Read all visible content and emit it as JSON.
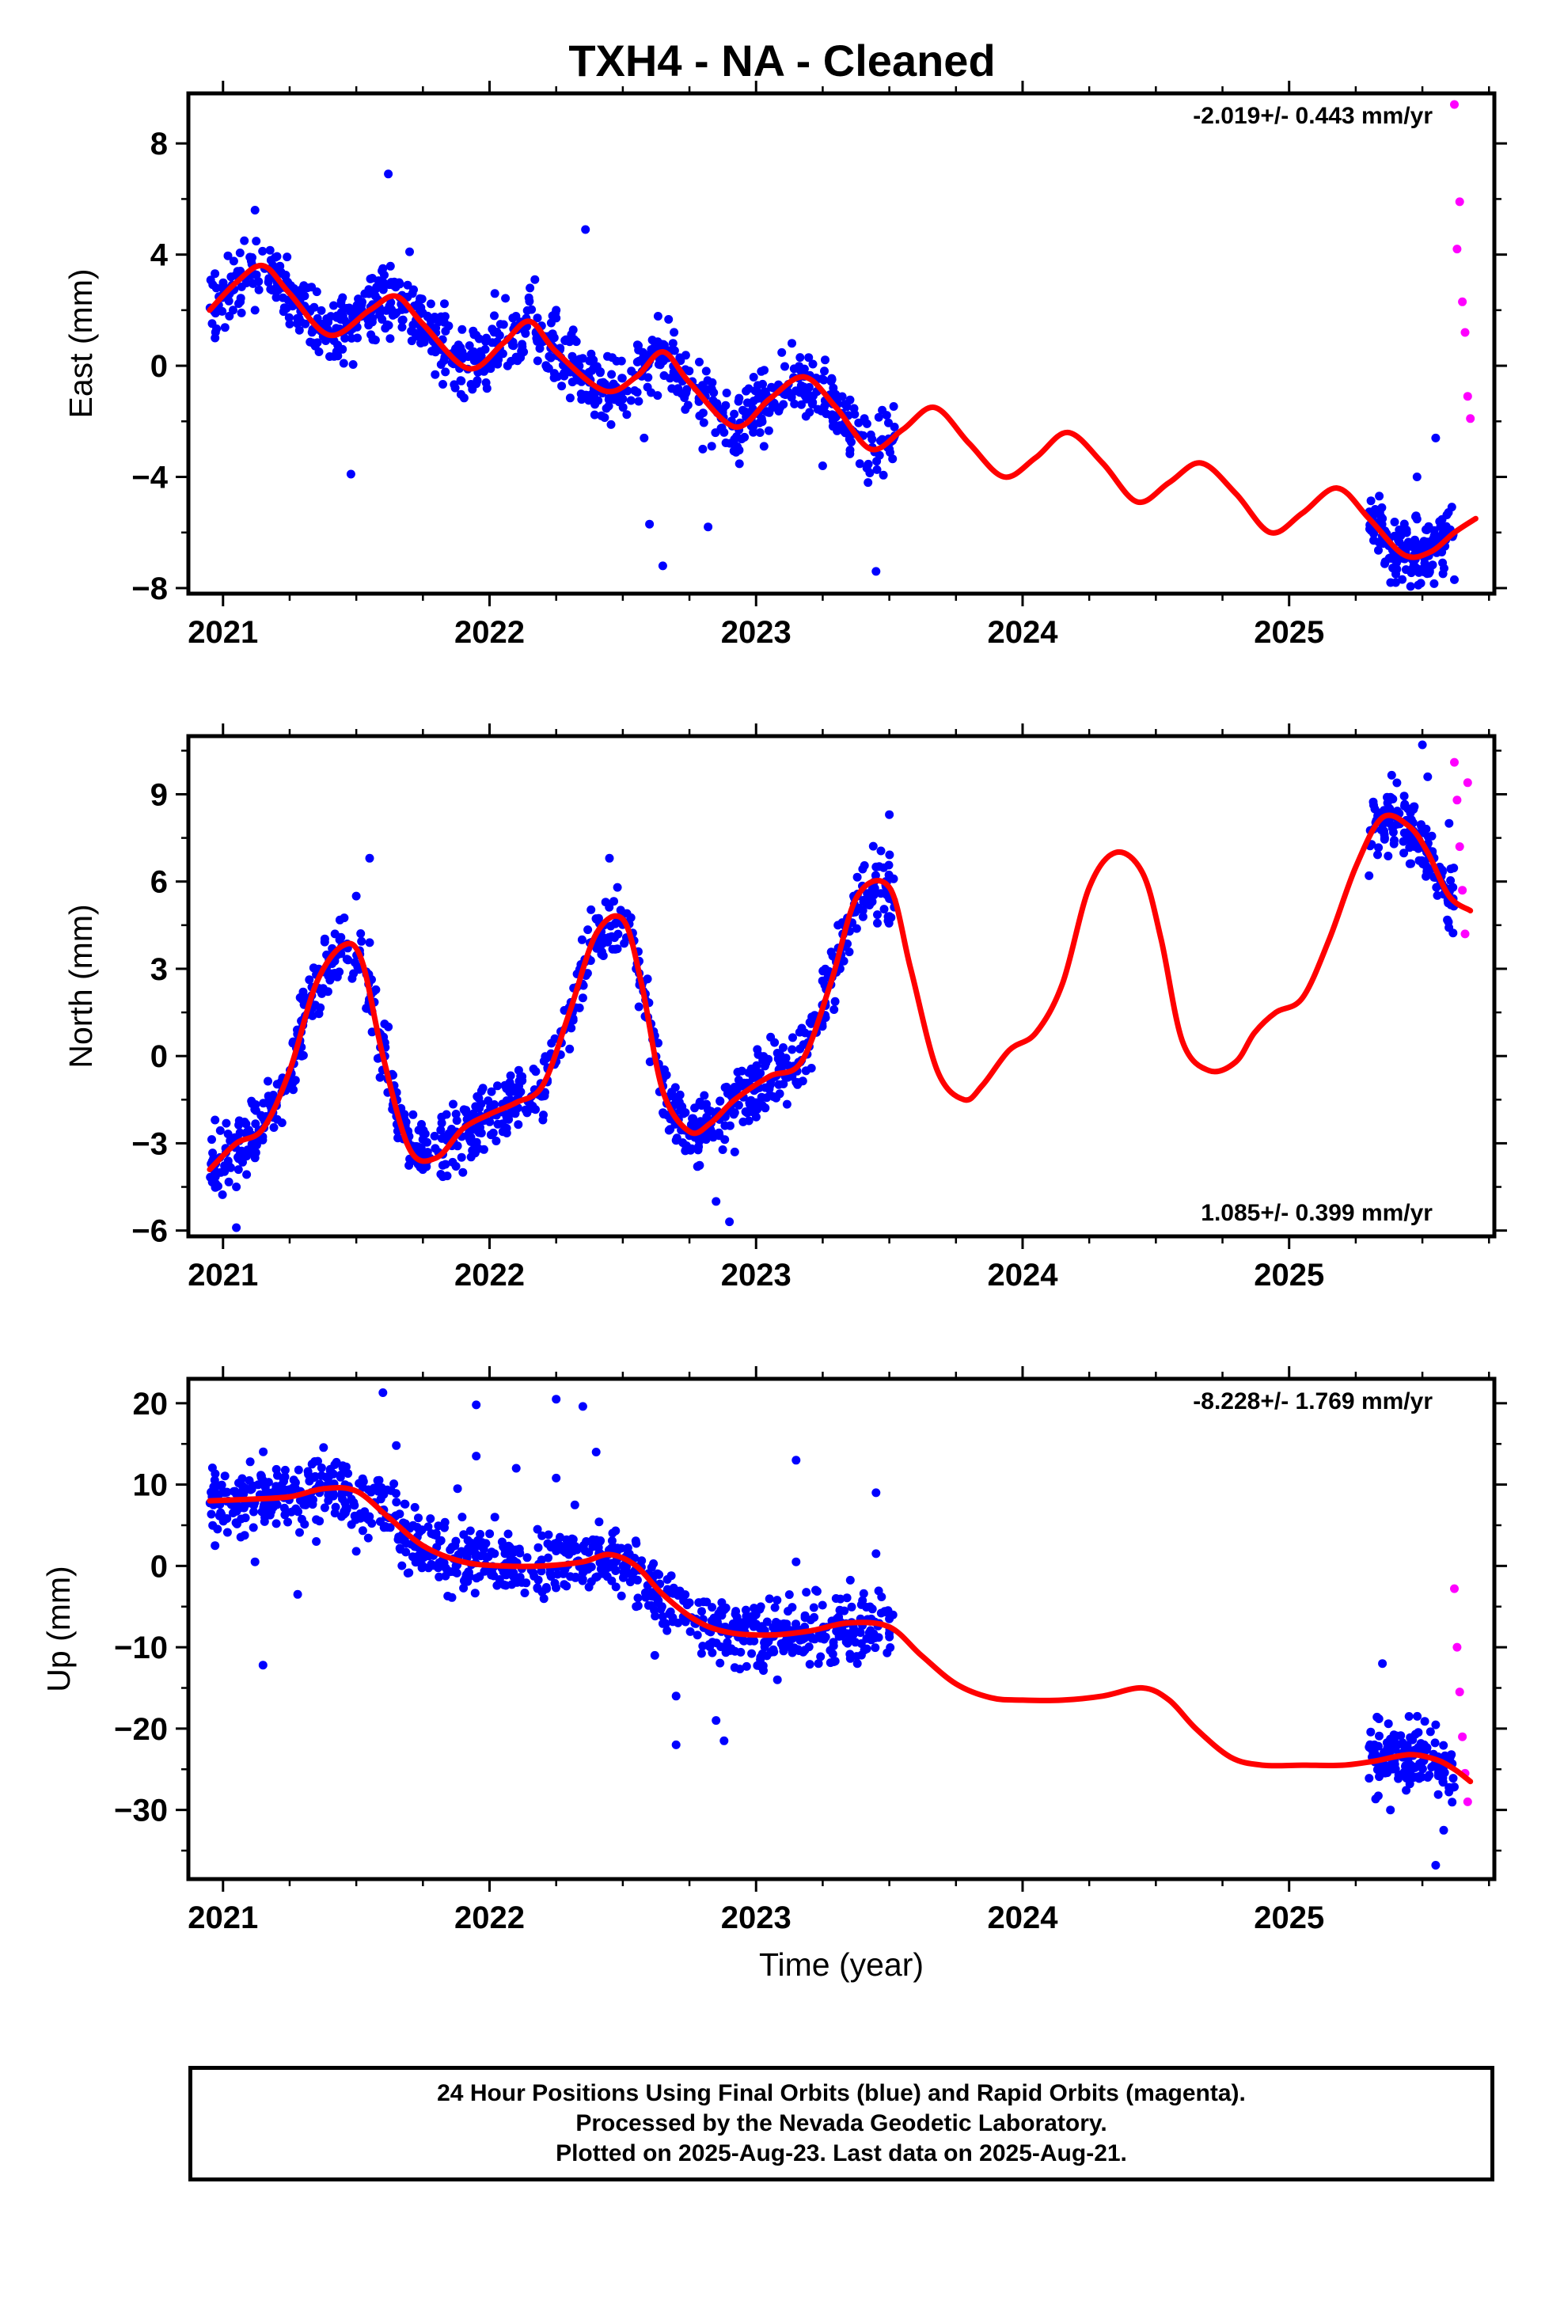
{
  "title": "TXH4  - NA - Cleaned",
  "xlabel": "Time (year)",
  "caption": [
    "24 Hour Positions Using Final Orbits (blue) and Rapid Orbits (magenta).",
    "Processed by the Nevada Geodetic Laboratory.",
    "Plotted on 2025-Aug-23. Last data on 2025-Aug-21."
  ],
  "colors": {
    "final": "#0000ff",
    "rapid": "#ff00ff",
    "model": "#ff0000",
    "axes": "#000000"
  },
  "chart_data": [
    {
      "type": "scatter",
      "ylabel": "East (mm)",
      "rate": "-2.019+/- 0.443 mm/yr",
      "xlim": [
        2020.87,
        2025.77
      ],
      "ylim": [
        -8.2,
        9.8
      ],
      "xticks": [
        2021,
        2022,
        2023,
        2024,
        2025
      ],
      "yticks": [
        -8,
        -4,
        0,
        4,
        8
      ],
      "ytick_labels": [
        "−8",
        "−4",
        "0",
        "4",
        "8"
      ],
      "model": {
        "x": [
          2020.95,
          2021.05,
          2021.15,
          2021.25,
          2021.4,
          2021.55,
          2021.65,
          2021.75,
          2021.92,
          2022.05,
          2022.15,
          2022.25,
          2022.43,
          2022.55,
          2022.65,
          2022.75,
          2022.92,
          2023.05,
          2023.18,
          2023.3,
          2023.43,
          2023.55,
          2023.67,
          2023.8,
          2023.93,
          2024.05,
          2024.17,
          2024.3,
          2024.43,
          2024.55,
          2024.67,
          2024.8,
          2024.93,
          2025.05,
          2025.18,
          2025.3,
          2025.43,
          2025.53,
          2025.62,
          2025.7
        ],
        "y": [
          2.0,
          3.0,
          3.6,
          2.6,
          1.1,
          2.0,
          2.5,
          1.5,
          -0.1,
          0.8,
          1.6,
          0.5,
          -0.9,
          -0.4,
          0.5,
          -0.6,
          -2.2,
          -1.2,
          -0.4,
          -1.5,
          -3.0,
          -2.3,
          -1.5,
          -2.8,
          -4.0,
          -3.3,
          -2.4,
          -3.5,
          -4.9,
          -4.2,
          -3.5,
          -4.6,
          -6.0,
          -5.3,
          -4.4,
          -5.5,
          -6.8,
          -6.7,
          -6.0,
          -5.5
        ]
      },
      "points": [
        {
          "x": [
            2020.97,
            2021.03,
            2021.08,
            2021.12,
            2021.18,
            2021.25,
            2021.3,
            2021.36,
            2021.45,
            2021.52,
            2021.6,
            2021.65,
            2021.7,
            2021.78,
            2021.86,
            2021.95,
            2022.02,
            2022.1,
            2022.17,
            2022.25,
            2022.33,
            2022.42,
            2022.5,
            2022.58,
            2022.65,
            2022.72,
            2022.8,
            2022.88,
            2022.95,
            2023.03,
            2023.1,
            2023.17,
            2023.25,
            2023.33,
            2023.42,
            2023.5,
            2025.35,
            2025.42,
            2025.48,
            2025.55
          ],
          "y": [
            1.0,
            3.2,
            4.5,
            2.0,
            3.8,
            1.5,
            2.8,
            0.5,
            1.8,
            2.2,
            3.5,
            1.9,
            4.1,
            1.2,
            0.3,
            1.1,
            2.6,
            0.2,
            3.1,
            2.0,
            -0.4,
            -1.8,
            -1.2,
            -2.6,
            0.2,
            -1.0,
            -3.0,
            -2.4,
            -1.6,
            -2.9,
            -0.8,
            -1.4,
            -3.6,
            -2.1,
            -4.2,
            -3.0,
            -5.5,
            -6.1,
            -4.0,
            -2.6
          ]
        },
        {
          "x": [
            2021.12,
            2021.48,
            2021.62,
            2022.36,
            2022.6,
            2022.65,
            2022.82,
            2023.45,
            2025.4,
            2025.62
          ],
          "y": [
            5.6,
            -3.9,
            6.9,
            4.9,
            -5.7,
            -7.2,
            -5.8,
            -7.4,
            -7.8,
            -7.7
          ]
        },
        {
          "x": [
            2025.62,
            2025.63,
            2025.64,
            2025.65,
            2025.66,
            2025.67,
            2025.68
          ],
          "y": [
            9.4,
            4.2,
            5.9,
            2.3,
            1.2,
            -1.1,
            -1.9
          ],
          "rapid": true
        }
      ]
    },
    {
      "type": "scatter",
      "ylabel": "North (mm)",
      "rate": "1.085+/- 0.399 mm/yr",
      "xlim": [
        2020.87,
        2025.77
      ],
      "ylim": [
        -6.2,
        11.0
      ],
      "xticks": [
        2021,
        2022,
        2023,
        2024,
        2025
      ],
      "yticks": [
        -6,
        -3,
        0,
        3,
        6,
        9
      ],
      "ytick_labels": [
        "−6",
        "−3",
        "0",
        "3",
        "6",
        "9"
      ],
      "model": {
        "x": [
          2020.95,
          2021.05,
          2021.15,
          2021.25,
          2021.35,
          2021.45,
          2021.52,
          2021.6,
          2021.7,
          2021.8,
          2021.9,
          2022.0,
          2022.1,
          2022.2,
          2022.3,
          2022.4,
          2022.5,
          2022.57,
          2022.65,
          2022.75,
          2022.83,
          2022.92,
          2023.05,
          2023.17,
          2023.28,
          2023.38,
          2023.5,
          2023.58,
          2023.68,
          2023.78,
          2023.85,
          2023.95,
          2024.05,
          2024.15,
          2024.25,
          2024.35,
          2024.45,
          2024.52,
          2024.6,
          2024.7,
          2024.8,
          2024.87,
          2024.95,
          2025.05,
          2025.15,
          2025.25,
          2025.35,
          2025.45,
          2025.52,
          2025.6,
          2025.68
        ],
        "y": [
          -3.9,
          -3.0,
          -2.5,
          -0.5,
          2.5,
          3.8,
          3.3,
          0.0,
          -3.2,
          -3.5,
          -2.5,
          -2.0,
          -1.6,
          -1.0,
          1.5,
          4.2,
          4.7,
          2.5,
          -1.2,
          -2.6,
          -2.3,
          -1.5,
          -0.7,
          -0.2,
          2.5,
          5.5,
          5.8,
          3.0,
          -0.5,
          -1.5,
          -1.0,
          0.2,
          0.8,
          2.5,
          5.8,
          7.0,
          6.3,
          4.0,
          0.5,
          -0.5,
          -0.2,
          0.8,
          1.5,
          2.0,
          4.0,
          6.5,
          8.2,
          7.9,
          7.0,
          5.5,
          5.0
        ]
      },
      "points": [
        {
          "x": [
            2020.97,
            2021.05,
            2021.12,
            2021.2,
            2021.28,
            2021.35,
            2021.42,
            2021.5,
            2021.55,
            2021.62,
            2021.68,
            2021.75,
            2021.82,
            2021.9,
            2021.97,
            2022.05,
            2022.12,
            2022.2,
            2022.28,
            2022.35,
            2022.42,
            2022.48,
            2022.55,
            2022.62,
            2022.7,
            2022.78,
            2022.85,
            2022.92,
            2023.0,
            2023.08,
            2023.15,
            2023.22,
            2023.3,
            2023.38,
            2023.45,
            2023.5,
            2025.3,
            2025.38,
            2025.45,
            2025.52,
            2025.6
          ],
          "y": [
            -2.2,
            -4.5,
            -3.5,
            -1.6,
            0.5,
            2.8,
            4.2,
            5.5,
            3.9,
            1.0,
            -2.0,
            -3.8,
            -2.1,
            -4.0,
            -1.2,
            -2.6,
            -0.8,
            -2.2,
            0.9,
            2.0,
            3.5,
            5.8,
            3.0,
            0.7,
            -2.9,
            -3.8,
            -5.0,
            -3.3,
            -1.6,
            0.1,
            -0.9,
            1.4,
            3.3,
            5.5,
            6.5,
            4.8,
            6.2,
            8.9,
            7.5,
            9.6,
            8.0
          ]
        },
        {
          "x": [
            2021.05,
            2021.55,
            2022.45,
            2022.9,
            2023.5,
            2025.5
          ],
          "y": [
            -5.9,
            6.8,
            6.8,
            -5.7,
            8.3,
            10.7
          ]
        },
        {
          "x": [
            2025.62,
            2025.63,
            2025.64,
            2025.65,
            2025.66,
            2025.67
          ],
          "y": [
            10.1,
            8.8,
            7.2,
            5.7,
            4.2,
            9.4
          ],
          "rapid": true
        }
      ]
    },
    {
      "type": "scatter",
      "ylabel": "Up (mm)",
      "rate": "-8.228+/- 1.769 mm/yr",
      "xlim": [
        2020.87,
        2025.77
      ],
      "ylim": [
        -38.5,
        23.0
      ],
      "xticks": [
        2021,
        2022,
        2023,
        2024,
        2025
      ],
      "yticks": [
        -30,
        -20,
        -10,
        0,
        10,
        20
      ],
      "ytick_labels": [
        "−30",
        "−20",
        "−10",
        "0",
        "10",
        "20"
      ],
      "model": {
        "x": [
          2020.95,
          2021.1,
          2021.25,
          2021.38,
          2021.5,
          2021.62,
          2021.75,
          2021.9,
          2022.05,
          2022.2,
          2022.35,
          2022.45,
          2022.55,
          2022.65,
          2022.78,
          2022.9,
          2023.05,
          2023.2,
          2023.35,
          2023.5,
          2023.62,
          2023.75,
          2023.88,
          2024.0,
          2024.15,
          2024.3,
          2024.45,
          2024.55,
          2024.65,
          2024.78,
          2024.9,
          2025.05,
          2025.2,
          2025.32,
          2025.45,
          2025.55,
          2025.62,
          2025.68
        ],
        "y": [
          8.0,
          8.2,
          8.5,
          9.5,
          9.2,
          6.0,
          2.5,
          0.5,
          0.0,
          0.0,
          0.5,
          1.4,
          0.0,
          -3.5,
          -6.8,
          -8.2,
          -8.5,
          -8.0,
          -7.0,
          -7.5,
          -11.0,
          -14.5,
          -16.2,
          -16.5,
          -16.5,
          -16.0,
          -15.0,
          -16.5,
          -20.0,
          -23.5,
          -24.5,
          -24.5,
          -24.5,
          -24.0,
          -23.2,
          -23.8,
          -25.0,
          -26.5
        ]
      },
      "points": [
        {
          "x": [
            2020.97,
            2021.05,
            2021.12,
            2021.2,
            2021.28,
            2021.35,
            2021.42,
            2021.5,
            2021.58,
            2021.65,
            2021.72,
            2021.8,
            2021.88,
            2021.95,
            2022.02,
            2022.1,
            2022.18,
            2022.25,
            2022.32,
            2022.4,
            2022.48,
            2022.55,
            2022.62,
            2022.7,
            2022.78,
            2022.85,
            2022.92,
            2023.0,
            2023.08,
            2023.15,
            2023.22,
            2023.3,
            2023.38,
            2023.45,
            2023.5,
            2025.32,
            2025.38,
            2025.45,
            2025.52,
            2025.58
          ],
          "y": [
            2.5,
            9.0,
            0.5,
            5.2,
            -3.5,
            3.0,
            6.5,
            1.8,
            10.5,
            14.8,
            7.2,
            4.0,
            9.5,
            13.5,
            6.0,
            12.0,
            4.5,
            10.8,
            7.5,
            14.0,
            2.2,
            -5.0,
            -11.0,
            -16.0,
            -8.5,
            -19.0,
            -12.5,
            -6.0,
            -14.0,
            0.5,
            -9.0,
            -4.0,
            -12.0,
            1.5,
            -6.5,
            -22.0,
            -30.0,
            -18.5,
            -26.0,
            -32.5
          ]
        },
        {
          "x": [
            2021.15,
            2021.6,
            2021.95,
            2022.25,
            2022.35,
            2022.7,
            2022.88,
            2023.15,
            2023.45,
            2025.35,
            2025.55
          ],
          "y": [
            -12.2,
            21.3,
            19.8,
            20.5,
            19.6,
            -22.0,
            -21.5,
            13.0,
            9.0,
            -12.0,
            -36.8
          ]
        },
        {
          "x": [
            2025.62,
            2025.63,
            2025.64,
            2025.65,
            2025.66,
            2025.67
          ],
          "y": [
            -2.8,
            -10.0,
            -15.5,
            -21.0,
            -25.5,
            -29.0
          ],
          "rapid": true
        }
      ]
    }
  ]
}
